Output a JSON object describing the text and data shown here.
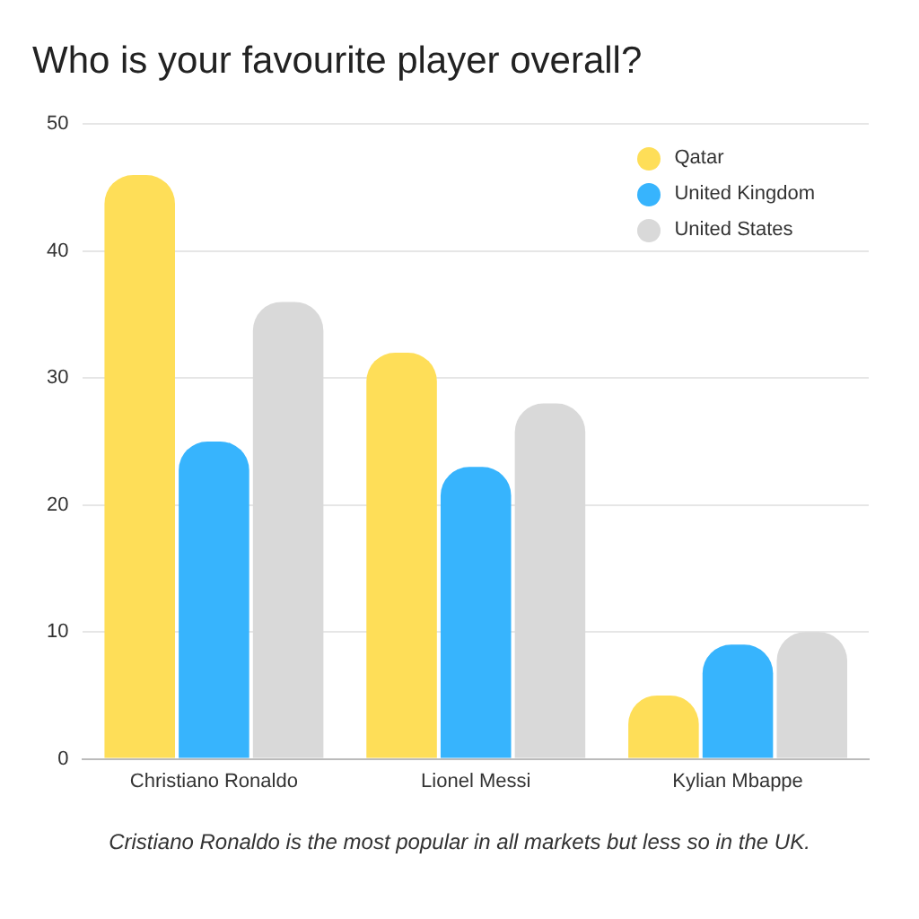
{
  "chart_data": {
    "type": "bar",
    "title": "Who is your favourite player overall?",
    "categories": [
      "Christiano Ronaldo",
      "Lionel Messi",
      "Kylian Mbappe"
    ],
    "series": [
      {
        "name": "Qatar",
        "color": "#fede58",
        "values": [
          46,
          32,
          5
        ]
      },
      {
        "name": "United Kingdom",
        "color": "#37b4fd",
        "values": [
          25,
          23,
          9
        ]
      },
      {
        "name": "United States",
        "color": "#d9d9d9",
        "values": [
          36,
          28,
          10
        ]
      }
    ],
    "ylim": [
      0,
      50
    ],
    "yticks": [
      0,
      10,
      20,
      30,
      40,
      50
    ],
    "grid": "y",
    "legend": "top right",
    "annotations": [
      "Cristiano Ronaldo is the most popular in all markets but less so in the UK."
    ]
  }
}
